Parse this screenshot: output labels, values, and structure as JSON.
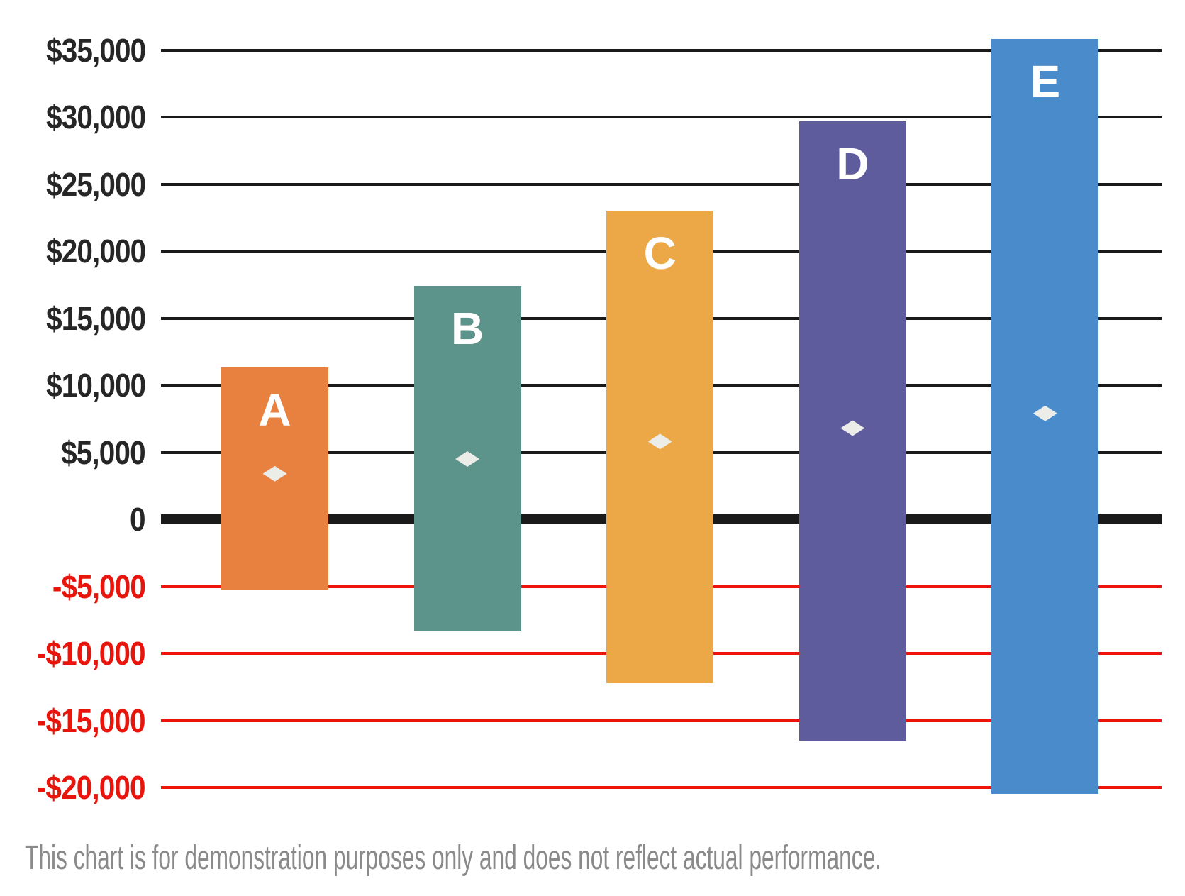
{
  "chart_data": {
    "type": "bar",
    "subtype": "floating-range-bars-with-markers",
    "categories": [
      "A",
      "B",
      "C",
      "D",
      "E"
    ],
    "bars": [
      {
        "label": "A",
        "low": -5300,
        "high": 11300,
        "marker": 3400,
        "color": "#E8813F"
      },
      {
        "label": "B",
        "low": -8300,
        "high": 17400,
        "marker": 4500,
        "color": "#5C938A"
      },
      {
        "label": "C",
        "low": -12200,
        "high": 23000,
        "marker": 5800,
        "color": "#ECA847"
      },
      {
        "label": "D",
        "low": -16500,
        "high": 29700,
        "marker": 6800,
        "color": "#5F5C9E"
      },
      {
        "label": "E",
        "low": -20500,
        "high": 35800,
        "marker": 7900,
        "color": "#4A8CCB"
      }
    ],
    "series": [
      {
        "name": "range_low",
        "values": [
          -5300,
          -8300,
          -12200,
          -16500,
          -20500
        ]
      },
      {
        "name": "range_high",
        "values": [
          11300,
          17400,
          23000,
          29700,
          35800
        ]
      },
      {
        "name": "marker",
        "values": [
          3400,
          4500,
          5800,
          6800,
          7900
        ]
      }
    ],
    "marker_shape": "diamond",
    "marker_color": "#ECECE9",
    "y_axis": {
      "min": -20000,
      "max": 35000,
      "tick_step": 5000,
      "ticks": [
        {
          "value": 35000,
          "label": "$35,000"
        },
        {
          "value": 30000,
          "label": "$30,000"
        },
        {
          "value": 25000,
          "label": "$25,000"
        },
        {
          "value": 20000,
          "label": "$20,000"
        },
        {
          "value": 15000,
          "label": "$15,000"
        },
        {
          "value": 10000,
          "label": "$10,000"
        },
        {
          "value": 5000,
          "label": "$5,000"
        },
        {
          "value": 0,
          "label": "0"
        },
        {
          "value": -5000,
          "label": "-$5,000"
        },
        {
          "value": -10000,
          "label": "-$10,000"
        },
        {
          "value": -15000,
          "label": "-$15,000"
        },
        {
          "value": -20000,
          "label": "-$20,000"
        }
      ],
      "positive_color": "#262626",
      "negative_color": "#E8150D",
      "gridline_positive_color": "#1A1A1A",
      "gridline_negative_color": "#EE1409",
      "zero_line_color": "#1A1A1A"
    },
    "grid": "horizontal-only",
    "legend": "none",
    "title": "",
    "xlabel": "",
    "ylabel": ""
  },
  "footnote": {
    "text": "This chart is for demonstration purposes only and does not reflect actual performance.",
    "color": "#8A8A8A"
  }
}
